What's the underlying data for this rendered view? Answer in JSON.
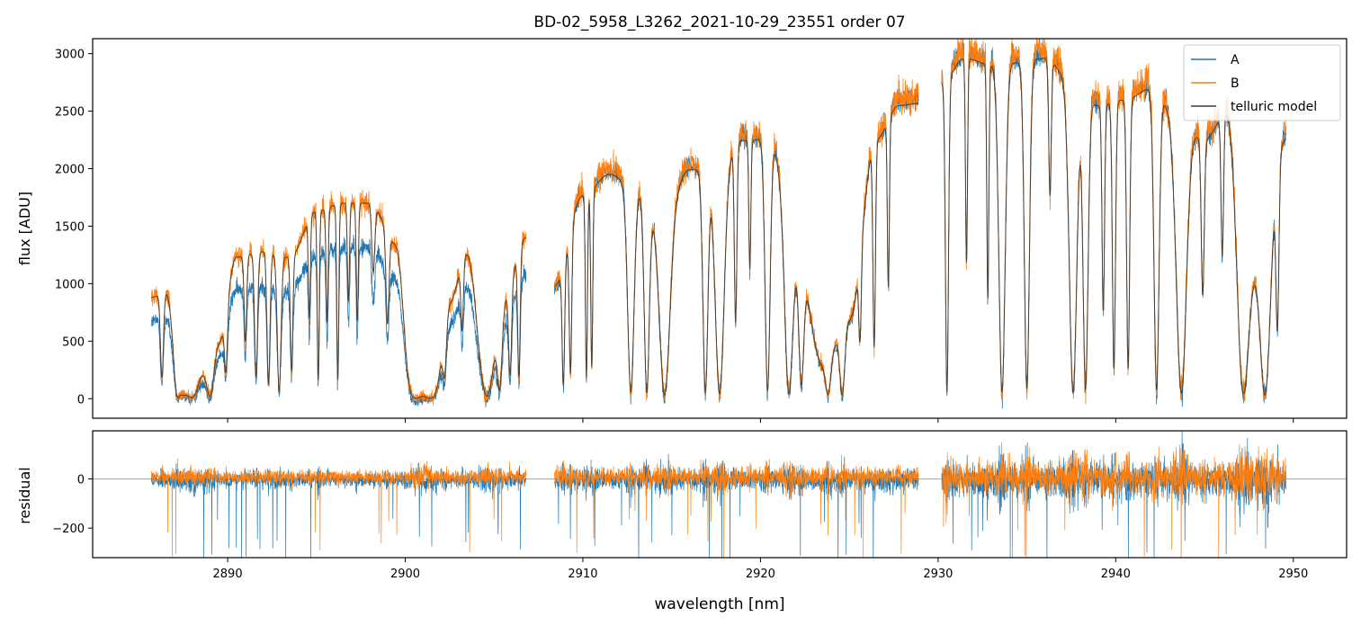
{
  "figure": {
    "title": "BD-02_5958_L3262_2021-10-29_23551  order 07",
    "xlabel": "wavelength [nm]"
  },
  "colors": {
    "A": "#1f77b4",
    "B": "#ff7f0e",
    "model": "#3a3a3a",
    "grid_zero": "#888888"
  },
  "chart_data": [
    {
      "type": "line",
      "panel": "flux",
      "ylabel": "flux [ADU]",
      "xlim": [
        2882.4,
        2953.0
      ],
      "ylim": [
        -170,
        3130
      ],
      "xticks": [
        2890,
        2900,
        2910,
        2920,
        2930,
        2940,
        2950
      ],
      "yticks": [
        0,
        500,
        1000,
        1500,
        2000,
        2500,
        3000
      ],
      "legend": {
        "placement": "top-right",
        "entries": [
          "A",
          "B",
          "telluric model"
        ]
      },
      "segments": [
        [
          2885.7,
          2906.8
        ],
        [
          2908.4,
          2928.9
        ],
        [
          2930.2,
          2949.6
        ]
      ],
      "series": [
        {
          "name": "A",
          "scale": 0.78,
          "segment_scale": [
            0.78,
            1.0,
            1.0
          ]
        },
        {
          "name": "B",
          "scale": 1.0
        },
        {
          "name": "telluric model",
          "scale": 1.0
        }
      ],
      "continuum_nodes": {
        "x": [
          2885.7,
          2886.5,
          2887.5,
          2888.5,
          2889.5,
          2890.5,
          2892,
          2893.5,
          2895,
          2896.5,
          2898,
          2899.5,
          2900.5,
          2901.5,
          2902.5,
          2903.5,
          2904.5,
          2905.5,
          2906.8,
          2908.4,
          2910,
          2911.5,
          2913,
          2914.5,
          2916,
          2917.5,
          2919,
          2920.5,
          2922,
          2923.5,
          2925,
          2926.5,
          2927.8,
          2928.9,
          2930.2,
          2931.5,
          2933,
          2934.5,
          2936,
          2937.5,
          2939,
          2940.5,
          2942,
          2943.5,
          2945,
          2946.5,
          2948,
          2949.6
        ],
        "y": [
          880,
          920,
          60,
          300,
          500,
          1230,
          1280,
          1230,
          1630,
          1700,
          1700,
          1360,
          140,
          130,
          850,
          1270,
          700,
          900,
          1400,
          1000,
          1800,
          1990,
          1850,
          1600,
          2030,
          2040,
          2290,
          2300,
          1300,
          300,
          700,
          2300,
          2600,
          2620,
          2800,
          3020,
          2960,
          2980,
          3020,
          2820,
          2600,
          2650,
          2750,
          2500,
          2300,
          2600,
          1400,
          2300
        ]
      },
      "absorption_lines": [
        {
          "x": 2886.3,
          "depth": 0.8,
          "width": 0.12
        },
        {
          "x": 2887.2,
          "depth": 0.95,
          "width": 0.25
        },
        {
          "x": 2888.0,
          "depth": 0.95,
          "width": 0.5
        },
        {
          "x": 2889.0,
          "depth": 0.95,
          "width": 0.3
        },
        {
          "x": 2889.9,
          "depth": 0.7,
          "width": 0.12
        },
        {
          "x": 2891.0,
          "depth": 0.6,
          "width": 0.1
        },
        {
          "x": 2891.6,
          "depth": 0.85,
          "width": 0.12
        },
        {
          "x": 2892.3,
          "depth": 0.9,
          "width": 0.12
        },
        {
          "x": 2892.9,
          "depth": 0.95,
          "width": 0.15
        },
        {
          "x": 2893.6,
          "depth": 0.8,
          "width": 0.1
        },
        {
          "x": 2894.6,
          "depth": 0.55,
          "width": 0.08
        },
        {
          "x": 2895.1,
          "depth": 0.9,
          "width": 0.08
        },
        {
          "x": 2895.6,
          "depth": 0.6,
          "width": 0.08
        },
        {
          "x": 2896.2,
          "depth": 0.9,
          "width": 0.08
        },
        {
          "x": 2896.8,
          "depth": 0.5,
          "width": 0.08
        },
        {
          "x": 2897.3,
          "depth": 0.6,
          "width": 0.08
        },
        {
          "x": 2898.2,
          "depth": 0.35,
          "width": 0.12
        },
        {
          "x": 2899.0,
          "depth": 0.55,
          "width": 0.12
        },
        {
          "x": 2900.6,
          "depth": 0.97,
          "width": 0.6
        },
        {
          "x": 2901.4,
          "depth": 0.97,
          "width": 0.6
        },
        {
          "x": 2902.2,
          "depth": 0.7,
          "width": 0.15
        },
        {
          "x": 2903.2,
          "depth": 0.5,
          "width": 0.1
        },
        {
          "x": 2904.6,
          "depth": 0.97,
          "width": 0.55
        },
        {
          "x": 2905.3,
          "depth": 0.9,
          "width": 0.2
        },
        {
          "x": 2905.9,
          "depth": 0.8,
          "width": 0.12
        },
        {
          "x": 2906.4,
          "depth": 0.85,
          "width": 0.1
        },
        {
          "x": 2908.9,
          "depth": 0.9,
          "width": 0.1
        },
        {
          "x": 2909.3,
          "depth": 0.85,
          "width": 0.1
        },
        {
          "x": 2910.2,
          "depth": 0.9,
          "width": 0.08
        },
        {
          "x": 2910.5,
          "depth": 0.85,
          "width": 0.08
        },
        {
          "x": 2912.7,
          "depth": 0.97,
          "width": 0.25
        },
        {
          "x": 2913.6,
          "depth": 0.97,
          "width": 0.2
        },
        {
          "x": 2914.6,
          "depth": 0.98,
          "width": 0.4
        },
        {
          "x": 2916.9,
          "depth": 0.97,
          "width": 0.2
        },
        {
          "x": 2917.7,
          "depth": 0.98,
          "width": 0.35
        },
        {
          "x": 2918.6,
          "depth": 0.7,
          "width": 0.1
        },
        {
          "x": 2919.4,
          "depth": 0.5,
          "width": 0.08
        },
        {
          "x": 2920.4,
          "depth": 0.97,
          "width": 0.2
        },
        {
          "x": 2921.6,
          "depth": 0.97,
          "width": 0.3
        },
        {
          "x": 2922.3,
          "depth": 0.9,
          "width": 0.2
        },
        {
          "x": 2923.8,
          "depth": 0.9,
          "width": 0.2
        },
        {
          "x": 2924.6,
          "depth": 0.95,
          "width": 0.2
        },
        {
          "x": 2925.6,
          "depth": 0.6,
          "width": 0.1
        },
        {
          "x": 2926.4,
          "depth": 0.8,
          "width": 0.1
        },
        {
          "x": 2927.2,
          "depth": 0.6,
          "width": 0.08
        },
        {
          "x": 2930.5,
          "depth": 0.98,
          "width": 0.12
        },
        {
          "x": 2931.6,
          "depth": 0.6,
          "width": 0.08
        },
        {
          "x": 2932.8,
          "depth": 0.7,
          "width": 0.08
        },
        {
          "x": 2933.6,
          "depth": 0.98,
          "width": 0.25
        },
        {
          "x": 2935.0,
          "depth": 0.97,
          "width": 0.2
        },
        {
          "x": 2936.3,
          "depth": 0.4,
          "width": 0.1
        },
        {
          "x": 2937.6,
          "depth": 0.98,
          "width": 0.3
        },
        {
          "x": 2938.3,
          "depth": 0.97,
          "width": 0.2
        },
        {
          "x": 2939.3,
          "depth": 0.7,
          "width": 0.1
        },
        {
          "x": 2939.9,
          "depth": 0.9,
          "width": 0.12
        },
        {
          "x": 2940.7,
          "depth": 0.9,
          "width": 0.12
        },
        {
          "x": 2942.3,
          "depth": 0.97,
          "width": 0.2
        },
        {
          "x": 2943.7,
          "depth": 0.98,
          "width": 0.4
        },
        {
          "x": 2944.9,
          "depth": 0.6,
          "width": 0.12
        },
        {
          "x": 2946.0,
          "depth": 0.5,
          "width": 0.1
        },
        {
          "x": 2947.2,
          "depth": 0.98,
          "width": 0.5
        },
        {
          "x": 2948.4,
          "depth": 0.98,
          "width": 0.4
        },
        {
          "x": 2949.1,
          "depth": 0.7,
          "width": 0.12
        }
      ]
    },
    {
      "type": "line",
      "panel": "residual",
      "ylabel": "residual",
      "xlim": [
        2882.4,
        2953.0
      ],
      "ylim": [
        -320,
        195
      ],
      "xticks": [
        2890,
        2900,
        2910,
        2920,
        2930,
        2940,
        2950
      ],
      "yticks": [
        -200,
        0
      ],
      "xlabel": "wavelength [nm]",
      "zero_line": 0,
      "series": [
        {
          "name": "A",
          "scatter_by_segment": [
            35,
            50,
            80
          ]
        },
        {
          "name": "B",
          "scatter_by_segment": [
            30,
            45,
            75
          ]
        }
      ]
    }
  ]
}
